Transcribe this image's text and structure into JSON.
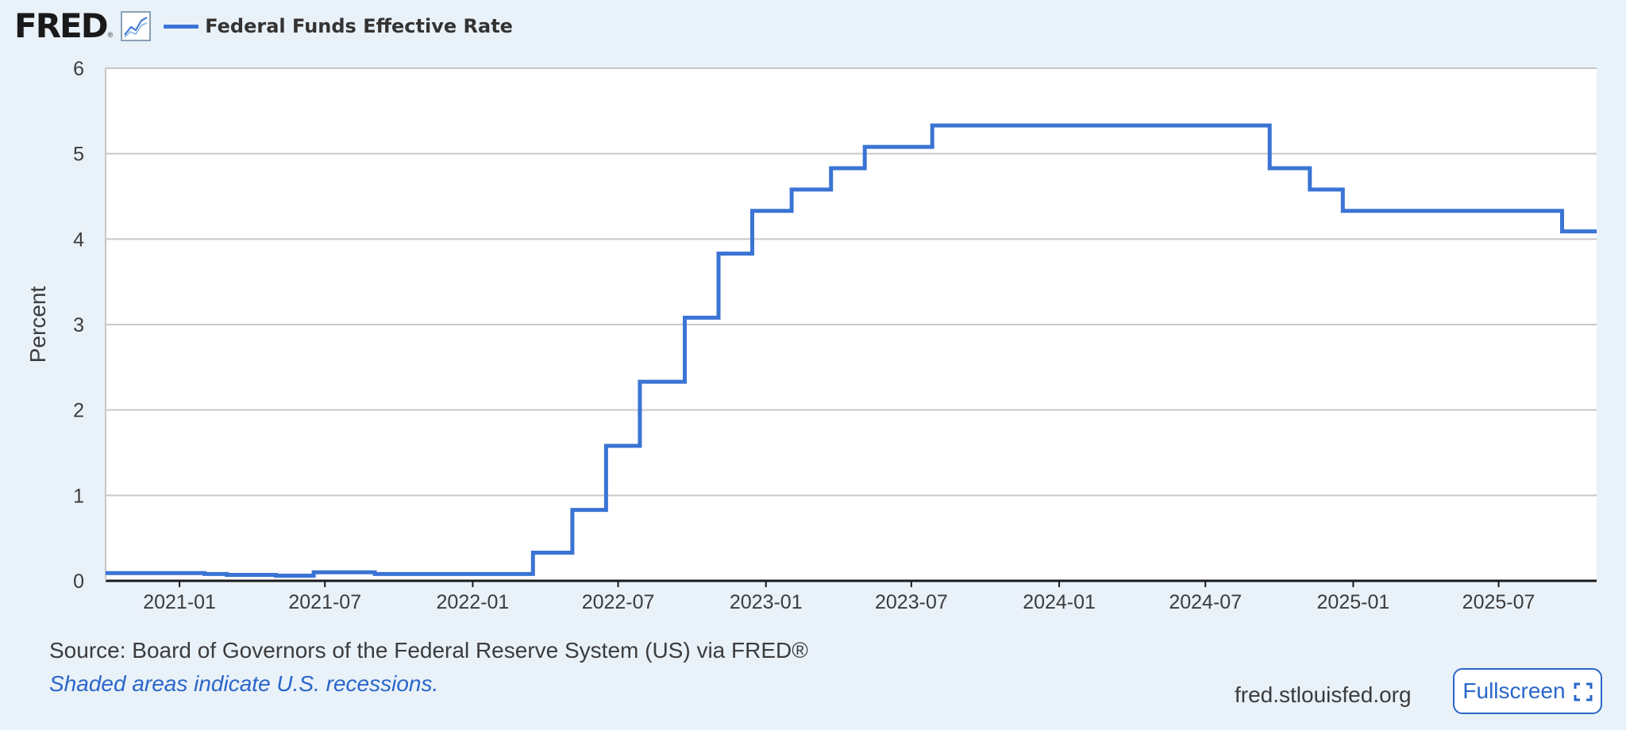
{
  "header": {
    "logo_text": "FRED",
    "logo_mark": "®",
    "chart_icon": "line-chart-icon"
  },
  "footer": {
    "source": "Source: Board of Governors of the Federal Reserve System (US) via FRED®",
    "note": "Shaded areas indicate U.S. recessions.",
    "site": "fred.stlouisfed.org",
    "fullscreen_label": "Fullscreen",
    "fullscreen_icon": "expand-icon"
  },
  "colors": {
    "series": "#3a74d4",
    "background": "#e9f1f9",
    "plot_background": "#ffffff",
    "grid": "#c8c8c8",
    "link": "#2a66c9"
  },
  "chart_data": {
    "type": "line",
    "title": "",
    "ylabel": "Percent",
    "xlabel": "",
    "ylim": [
      0,
      6
    ],
    "xlim": [
      "2020-10-01",
      "2025-10-31"
    ],
    "grid": true,
    "legend": "top-left",
    "yticks": [
      0,
      1,
      2,
      3,
      4,
      5,
      6
    ],
    "xticks": [
      "2021-01",
      "2021-07",
      "2022-01",
      "2022-07",
      "2023-01",
      "2023-07",
      "2024-01",
      "2024-07",
      "2025-01",
      "2025-07"
    ],
    "series": [
      {
        "name": "Federal Funds Effective Rate",
        "step": true,
        "points": [
          [
            "2020-10-01",
            0.09
          ],
          [
            "2021-02-01",
            0.08
          ],
          [
            "2021-03-01",
            0.07
          ],
          [
            "2021-05-01",
            0.06
          ],
          [
            "2021-06-17",
            0.1
          ],
          [
            "2021-09-01",
            0.08
          ],
          [
            "2022-03-17",
            0.33
          ],
          [
            "2022-05-05",
            0.83
          ],
          [
            "2022-06-16",
            1.58
          ],
          [
            "2022-07-28",
            2.33
          ],
          [
            "2022-09-22",
            3.08
          ],
          [
            "2022-11-03",
            3.83
          ],
          [
            "2022-12-15",
            4.33
          ],
          [
            "2023-02-02",
            4.58
          ],
          [
            "2023-03-23",
            4.83
          ],
          [
            "2023-05-04",
            5.08
          ],
          [
            "2023-07-27",
            5.33
          ],
          [
            "2024-09-19",
            4.83
          ],
          [
            "2024-11-08",
            4.58
          ],
          [
            "2024-12-19",
            4.33
          ],
          [
            "2025-09-18",
            4.09
          ],
          [
            "2025-10-31",
            4.09
          ]
        ]
      }
    ]
  }
}
